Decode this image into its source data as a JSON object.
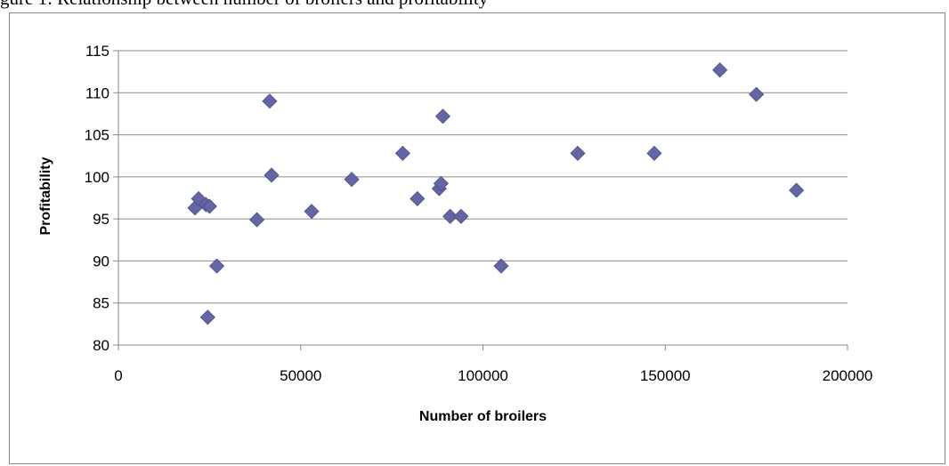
{
  "caption": "gure 1: Relationship between number of broilers and profitability",
  "chart_data": {
    "type": "scatter",
    "title": "",
    "xlabel": "Number of broilers",
    "ylabel": "Profitability",
    "xlim": [
      0,
      200000
    ],
    "ylim": [
      80,
      115
    ],
    "xticks": [
      0,
      50000,
      100000,
      150000,
      200000
    ],
    "yticks": [
      80,
      85,
      90,
      95,
      100,
      105,
      110,
      115
    ],
    "grid": "horizontal",
    "legend": "none",
    "marker": "diamond",
    "marker_color": "#6466A3",
    "series": [
      {
        "points": [
          {
            "x": 21000,
            "y": 96.3
          },
          {
            "x": 22000,
            "y": 97.4
          },
          {
            "x": 24000,
            "y": 96.7
          },
          {
            "x": 25000,
            "y": 96.5
          },
          {
            "x": 24500,
            "y": 83.3
          },
          {
            "x": 27000,
            "y": 89.4
          },
          {
            "x": 38000,
            "y": 94.9
          },
          {
            "x": 41500,
            "y": 109.0
          },
          {
            "x": 42000,
            "y": 100.2
          },
          {
            "x": 53000,
            "y": 95.9
          },
          {
            "x": 64000,
            "y": 99.7
          },
          {
            "x": 78000,
            "y": 102.8
          },
          {
            "x": 82000,
            "y": 97.4
          },
          {
            "x": 88000,
            "y": 98.6
          },
          {
            "x": 88500,
            "y": 99.2
          },
          {
            "x": 89000,
            "y": 107.2
          },
          {
            "x": 91000,
            "y": 95.3
          },
          {
            "x": 94000,
            "y": 95.3
          },
          {
            "x": 105000,
            "y": 89.4
          },
          {
            "x": 126000,
            "y": 102.8
          },
          {
            "x": 147000,
            "y": 102.8
          },
          {
            "x": 165000,
            "y": 112.7
          },
          {
            "x": 175000,
            "y": 109.8
          },
          {
            "x": 186000,
            "y": 98.4
          }
        ]
      }
    ]
  }
}
